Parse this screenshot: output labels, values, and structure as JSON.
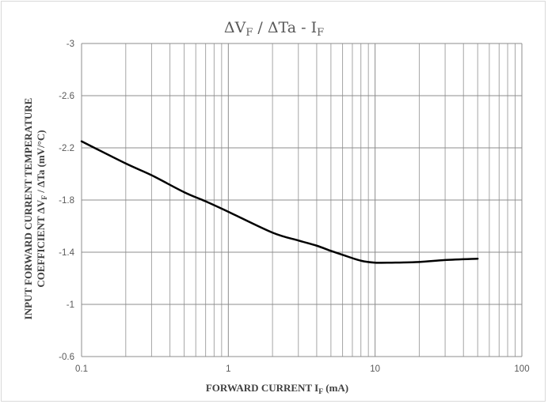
{
  "chart_data": {
    "type": "line",
    "title": {
      "prefix": "ΔV",
      "prefix_sub": "F",
      "middle": " / ΔTa - I",
      "suffix_sub": "F"
    },
    "xlabel": {
      "main": "FORWARD CURRENT I",
      "sub": "F",
      "unit": " (mA)"
    },
    "ylabel": {
      "line1": "INPUT FORWARD CURRENT TEMPERATURE",
      "line2_a": "COEFFICIENT  ΔV",
      "line2_sub": "F",
      "line2_b": " / ΔTa  (mV/°C)"
    },
    "x_scale": "log",
    "xlim": [
      0.1,
      100
    ],
    "ylim": [
      -0.6,
      -3
    ],
    "y_reversed": true,
    "x_ticks": [
      0.1,
      1,
      10,
      100
    ],
    "x_tick_labels": [
      "0.1",
      "1",
      "10",
      "100"
    ],
    "y_ticks": [
      -3,
      -2.6,
      -2.2,
      -1.8,
      -1.4,
      -1,
      -0.6
    ],
    "y_tick_labels": [
      "-3",
      "-2.6",
      "-2.2",
      "-1.8",
      "-1.4",
      "-1",
      "-0.6"
    ],
    "grid": true,
    "line_color": "#000000",
    "grid_color": "#999999",
    "series": [
      {
        "x": [
          0.1,
          0.2,
          0.3,
          0.5,
          0.7,
          1,
          2,
          3,
          4,
          5,
          6,
          8,
          10,
          13,
          20,
          30,
          50
        ],
        "y": [
          -2.25,
          -2.08,
          -1.99,
          -1.86,
          -1.79,
          -1.71,
          -1.55,
          -1.49,
          -1.45,
          -1.41,
          -1.38,
          -1.335,
          -1.32,
          -1.32,
          -1.325,
          -1.34,
          -1.35
        ]
      }
    ]
  }
}
